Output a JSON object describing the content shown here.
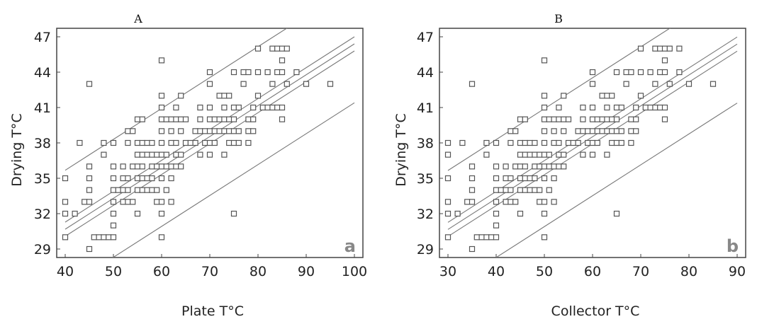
{
  "chart_data": [
    {
      "type": "scatter",
      "title": "A",
      "panel_tag": "a",
      "xlabel": "Plate T°C",
      "ylabel": "Drying T°C",
      "xlim": [
        40,
        100
      ],
      "ylim": [
        29,
        47
      ],
      "x_ticks": [
        40,
        50,
        60,
        70,
        80,
        90,
        100
      ],
      "y_ticks": [
        29,
        32,
        35,
        38,
        41,
        44,
        47
      ],
      "fit": {
        "slope": 0.262,
        "intercept": 20.2,
        "prediction_half_width": 5.0,
        "confidence_half_width": 0.6
      },
      "points": [
        [
          40,
          35
        ],
        [
          40,
          33
        ],
        [
          40,
          32
        ],
        [
          40,
          30
        ],
        [
          42,
          32
        ],
        [
          43,
          38
        ],
        [
          44,
          33
        ],
        [
          45,
          43
        ],
        [
          45,
          36
        ],
        [
          45,
          35
        ],
        [
          45,
          34
        ],
        [
          45,
          33
        ],
        [
          45,
          29
        ],
        [
          46,
          30
        ],
        [
          47,
          30
        ],
        [
          48,
          38
        ],
        [
          48,
          37
        ],
        [
          48,
          30
        ],
        [
          49,
          30
        ],
        [
          50,
          38
        ],
        [
          50,
          36
        ],
        [
          50,
          35
        ],
        [
          50,
          34
        ],
        [
          50,
          33
        ],
        [
          50,
          32
        ],
        [
          50,
          31
        ],
        [
          50,
          30
        ],
        [
          51,
          34
        ],
        [
          52,
          36
        ],
        [
          52,
          35
        ],
        [
          52,
          34
        ],
        [
          52,
          33
        ],
        [
          53,
          39
        ],
        [
          53,
          38
        ],
        [
          53,
          35
        ],
        [
          53,
          34
        ],
        [
          53,
          33
        ],
        [
          54,
          39
        ],
        [
          54,
          36
        ],
        [
          54,
          33
        ],
        [
          55,
          40
        ],
        [
          55,
          38
        ],
        [
          55,
          37
        ],
        [
          55,
          36
        ],
        [
          55,
          35
        ],
        [
          55,
          34
        ],
        [
          55,
          32
        ],
        [
          56,
          40
        ],
        [
          56,
          38
        ],
        [
          56,
          37
        ],
        [
          56,
          36
        ],
        [
          56,
          35
        ],
        [
          56,
          34
        ],
        [
          57,
          38
        ],
        [
          57,
          37
        ],
        [
          57,
          35
        ],
        [
          57,
          34
        ],
        [
          58,
          38
        ],
        [
          58,
          37
        ],
        [
          58,
          36
        ],
        [
          58,
          35
        ],
        [
          58,
          34
        ],
        [
          59,
          37
        ],
        [
          59,
          36
        ],
        [
          59,
          34
        ],
        [
          59,
          33
        ],
        [
          60,
          45
        ],
        [
          60,
          42
        ],
        [
          60,
          41
        ],
        [
          60,
          40
        ],
        [
          60,
          39
        ],
        [
          60,
          38
        ],
        [
          60,
          37
        ],
        [
          60,
          36
        ],
        [
          60,
          35
        ],
        [
          60,
          33
        ],
        [
          60,
          32
        ],
        [
          60,
          30
        ],
        [
          61,
          40
        ],
        [
          61,
          37
        ],
        [
          61,
          36
        ],
        [
          61,
          34
        ],
        [
          62,
          40
        ],
        [
          62,
          39
        ],
        [
          62,
          38
        ],
        [
          62,
          36
        ],
        [
          62,
          35
        ],
        [
          62,
          33
        ],
        [
          63,
          41
        ],
        [
          63,
          40
        ],
        [
          63,
          38
        ],
        [
          63,
          37
        ],
        [
          63,
          36
        ],
        [
          64,
          42
        ],
        [
          64,
          40
        ],
        [
          64,
          39
        ],
        [
          64,
          37
        ],
        [
          64,
          36
        ],
        [
          65,
          40
        ],
        [
          65,
          38
        ],
        [
          66,
          38
        ],
        [
          67,
          39
        ],
        [
          67,
          38
        ],
        [
          68,
          41
        ],
        [
          68,
          40
        ],
        [
          68,
          39
        ],
        [
          68,
          37
        ],
        [
          69,
          39
        ],
        [
          69,
          38
        ],
        [
          70,
          44
        ],
        [
          70,
          43
        ],
        [
          70,
          41
        ],
        [
          70,
          40
        ],
        [
          70,
          39
        ],
        [
          70,
          38
        ],
        [
          70,
          37
        ],
        [
          71,
          40
        ],
        [
          71,
          39
        ],
        [
          71,
          38
        ],
        [
          72,
          42
        ],
        [
          72,
          40
        ],
        [
          72,
          39
        ],
        [
          73,
          42
        ],
        [
          73,
          41
        ],
        [
          73,
          40
        ],
        [
          73,
          39
        ],
        [
          73,
          37
        ],
        [
          74,
          42
        ],
        [
          74,
          40
        ],
        [
          74,
          39
        ],
        [
          74,
          38
        ],
        [
          75,
          44
        ],
        [
          75,
          41
        ],
        [
          75,
          40
        ],
        [
          75,
          39
        ],
        [
          75,
          38
        ],
        [
          75,
          32
        ],
        [
          76,
          41
        ],
        [
          76,
          39
        ],
        [
          76,
          38
        ],
        [
          77,
          44
        ],
        [
          77,
          43
        ],
        [
          78,
          44
        ],
        [
          78,
          40
        ],
        [
          78,
          39
        ],
        [
          78,
          38
        ],
        [
          79,
          41
        ],
        [
          79,
          40
        ],
        [
          79,
          39
        ],
        [
          80,
          46
        ],
        [
          80,
          44
        ],
        [
          80,
          42
        ],
        [
          81,
          41
        ],
        [
          82,
          44
        ],
        [
          82,
          41
        ],
        [
          83,
          46
        ],
        [
          83,
          43
        ],
        [
          83,
          41
        ],
        [
          84,
          46
        ],
        [
          84,
          44
        ],
        [
          84,
          41
        ],
        [
          85,
          46
        ],
        [
          85,
          45
        ],
        [
          85,
          44
        ],
        [
          85,
          41
        ],
        [
          85,
          40
        ],
        [
          86,
          46
        ],
        [
          86,
          43
        ],
        [
          88,
          44
        ],
        [
          90,
          43
        ],
        [
          95,
          43
        ]
      ]
    },
    {
      "type": "scatter",
      "title": "B",
      "panel_tag": "b",
      "xlabel": "Collector T°C",
      "ylabel": "Drying T°C",
      "xlim": [
        30,
        90
      ],
      "ylim": [
        29,
        47
      ],
      "x_ticks": [
        30,
        40,
        50,
        60,
        70,
        80,
        90
      ],
      "y_ticks": [
        29,
        32,
        35,
        38,
        41,
        44,
        47
      ],
      "fit": {
        "slope": 0.262,
        "intercept": 22.8,
        "prediction_half_width": 5.0,
        "confidence_half_width": 0.6
      },
      "points": [
        [
          30,
          38
        ],
        [
          30,
          37
        ],
        [
          30,
          35
        ],
        [
          30,
          33
        ],
        [
          30,
          32
        ],
        [
          30,
          30
        ],
        [
          32,
          32
        ],
        [
          33,
          38
        ],
        [
          34,
          33
        ],
        [
          35,
          43
        ],
        [
          35,
          36
        ],
        [
          35,
          35
        ],
        [
          35,
          34
        ],
        [
          35,
          33
        ],
        [
          35,
          29
        ],
        [
          36,
          30
        ],
        [
          37,
          30
        ],
        [
          38,
          38
        ],
        [
          38,
          37
        ],
        [
          38,
          30
        ],
        [
          39,
          30
        ],
        [
          40,
          38
        ],
        [
          40,
          36
        ],
        [
          40,
          35
        ],
        [
          40,
          34
        ],
        [
          40,
          33
        ],
        [
          40,
          32
        ],
        [
          40,
          31
        ],
        [
          40,
          30
        ],
        [
          41,
          34
        ],
        [
          42,
          36
        ],
        [
          42,
          35
        ],
        [
          42,
          34
        ],
        [
          42,
          33
        ],
        [
          43,
          39
        ],
        [
          43,
          38
        ],
        [
          43,
          35
        ],
        [
          43,
          34
        ],
        [
          43,
          33
        ],
        [
          44,
          39
        ],
        [
          44,
          36
        ],
        [
          44,
          33
        ],
        [
          45,
          40
        ],
        [
          45,
          38
        ],
        [
          45,
          37
        ],
        [
          45,
          36
        ],
        [
          45,
          35
        ],
        [
          45,
          34
        ],
        [
          45,
          32
        ],
        [
          46,
          40
        ],
        [
          46,
          38
        ],
        [
          46,
          37
        ],
        [
          46,
          36
        ],
        [
          46,
          35
        ],
        [
          46,
          34
        ],
        [
          47,
          38
        ],
        [
          47,
          37
        ],
        [
          47,
          35
        ],
        [
          47,
          34
        ],
        [
          48,
          38
        ],
        [
          48,
          37
        ],
        [
          48,
          36
        ],
        [
          48,
          35
        ],
        [
          48,
          34
        ],
        [
          49,
          37
        ],
        [
          49,
          36
        ],
        [
          49,
          34
        ],
        [
          49,
          33
        ],
        [
          50,
          45
        ],
        [
          50,
          42
        ],
        [
          50,
          41
        ],
        [
          50,
          40
        ],
        [
          50,
          39
        ],
        [
          50,
          38
        ],
        [
          50,
          37
        ],
        [
          50,
          36
        ],
        [
          50,
          35
        ],
        [
          50,
          33
        ],
        [
          50,
          32
        ],
        [
          50,
          30
        ],
        [
          51,
          40
        ],
        [
          51,
          37
        ],
        [
          51,
          36
        ],
        [
          51,
          34
        ],
        [
          52,
          40
        ],
        [
          52,
          39
        ],
        [
          52,
          38
        ],
        [
          52,
          36
        ],
        [
          52,
          35
        ],
        [
          52,
          33
        ],
        [
          53,
          41
        ],
        [
          53,
          40
        ],
        [
          53,
          38
        ],
        [
          53,
          37
        ],
        [
          53,
          36
        ],
        [
          54,
          42
        ],
        [
          54,
          40
        ],
        [
          54,
          39
        ],
        [
          54,
          37
        ],
        [
          54,
          36
        ],
        [
          55,
          40
        ],
        [
          55,
          38
        ],
        [
          56,
          38
        ],
        [
          57,
          39
        ],
        [
          57,
          38
        ],
        [
          58,
          41
        ],
        [
          58,
          40
        ],
        [
          58,
          39
        ],
        [
          58,
          37
        ],
        [
          59,
          39
        ],
        [
          59,
          38
        ],
        [
          60,
          44
        ],
        [
          60,
          43
        ],
        [
          60,
          41
        ],
        [
          60,
          40
        ],
        [
          60,
          39
        ],
        [
          60,
          38
        ],
        [
          60,
          37
        ],
        [
          61,
          40
        ],
        [
          61,
          39
        ],
        [
          61,
          38
        ],
        [
          62,
          42
        ],
        [
          62,
          40
        ],
        [
          62,
          39
        ],
        [
          63,
          42
        ],
        [
          63,
          41
        ],
        [
          63,
          40
        ],
        [
          63,
          39
        ],
        [
          63,
          37
        ],
        [
          64,
          42
        ],
        [
          64,
          40
        ],
        [
          64,
          39
        ],
        [
          64,
          38
        ],
        [
          65,
          44
        ],
        [
          65,
          41
        ],
        [
          65,
          40
        ],
        [
          65,
          39
        ],
        [
          65,
          38
        ],
        [
          65,
          32
        ],
        [
          66,
          41
        ],
        [
          66,
          39
        ],
        [
          66,
          38
        ],
        [
          67,
          44
        ],
        [
          67,
          43
        ],
        [
          68,
          44
        ],
        [
          68,
          40
        ],
        [
          68,
          39
        ],
        [
          68,
          38
        ],
        [
          69,
          41
        ],
        [
          69,
          40
        ],
        [
          69,
          39
        ],
        [
          70,
          46
        ],
        [
          70,
          44
        ],
        [
          70,
          42
        ],
        [
          71,
          41
        ],
        [
          72,
          44
        ],
        [
          72,
          41
        ],
        [
          73,
          46
        ],
        [
          73,
          43
        ],
        [
          73,
          41
        ],
        [
          74,
          46
        ],
        [
          74,
          44
        ],
        [
          74,
          41
        ],
        [
          75,
          46
        ],
        [
          75,
          45
        ],
        [
          75,
          44
        ],
        [
          75,
          41
        ],
        [
          75,
          40
        ],
        [
          76,
          46
        ],
        [
          76,
          43
        ],
        [
          78,
          46
        ],
        [
          78,
          44
        ],
        [
          80,
          43
        ],
        [
          85,
          43
        ]
      ]
    }
  ]
}
